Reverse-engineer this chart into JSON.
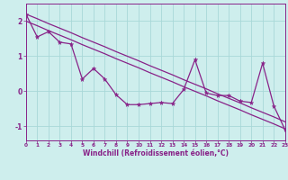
{
  "x": [
    0,
    1,
    2,
    3,
    4,
    5,
    6,
    7,
    8,
    9,
    10,
    11,
    12,
    13,
    14,
    15,
    16,
    17,
    18,
    19,
    20,
    21,
    22,
    23
  ],
  "y_main": [
    2.2,
    1.55,
    1.7,
    1.4,
    1.35,
    0.35,
    0.65,
    0.35,
    -0.1,
    -0.38,
    -0.38,
    -0.35,
    -0.32,
    -0.35,
    0.05,
    0.9,
    -0.05,
    -0.12,
    -0.12,
    -0.28,
    -0.32,
    0.8,
    -0.42,
    -1.1
  ],
  "trend_upper": [
    2.2,
    2.07,
    1.93,
    1.8,
    1.67,
    1.53,
    1.4,
    1.27,
    1.13,
    1.0,
    0.87,
    0.73,
    0.6,
    0.47,
    0.33,
    0.2,
    0.07,
    -0.07,
    -0.2,
    -0.33,
    -0.47,
    -0.6,
    -0.73,
    -0.87
  ],
  "trend_lower": [
    2.0,
    1.87,
    1.73,
    1.6,
    1.47,
    1.33,
    1.2,
    1.07,
    0.93,
    0.8,
    0.67,
    0.53,
    0.4,
    0.27,
    0.13,
    0.0,
    -0.13,
    -0.27,
    -0.4,
    -0.53,
    -0.67,
    -0.8,
    -0.93,
    -1.07
  ],
  "xlabel": "Windchill (Refroidissement éolien,°C)",
  "bg_color": "#ceeeed",
  "line_color": "#882288",
  "grid_color": "#a8d8d8",
  "ylim": [
    -1.4,
    2.5
  ],
  "xlim": [
    0,
    23
  ],
  "yticks": [
    -1,
    0,
    1,
    2
  ],
  "xticks": [
    0,
    1,
    2,
    3,
    4,
    5,
    6,
    7,
    8,
    9,
    10,
    11,
    12,
    13,
    14,
    15,
    16,
    17,
    18,
    19,
    20,
    21,
    22,
    23
  ]
}
